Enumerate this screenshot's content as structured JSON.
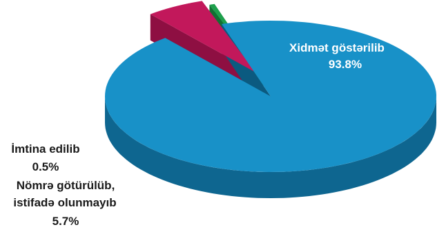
{
  "chart_data": {
    "type": "pie",
    "style": "3d-exploded",
    "title": "",
    "slices": [
      {
        "label": "Xidmət göstərilib",
        "value": 93.8,
        "value_label": "93.8%",
        "color": "#1891C8",
        "side_color": "#0E6690",
        "label_color": "#ffffff"
      },
      {
        "label": "İmtina edilib",
        "value": 0.5,
        "value_label": "0.5%",
        "color": "#1EA04C",
        "side_color": "#117033",
        "label_color": "#1a1a1a"
      },
      {
        "label": "Nömrə götürülüb, istifadə olunmayıb",
        "label_lines": [
          "Nömrə götürülüb,",
          "istifadə olunmayıb"
        ],
        "value": 5.7,
        "value_label": "5.7%",
        "color": "#C2185B",
        "side_color": "#8E0F42",
        "label_color": "#1a1a1a"
      }
    ]
  }
}
